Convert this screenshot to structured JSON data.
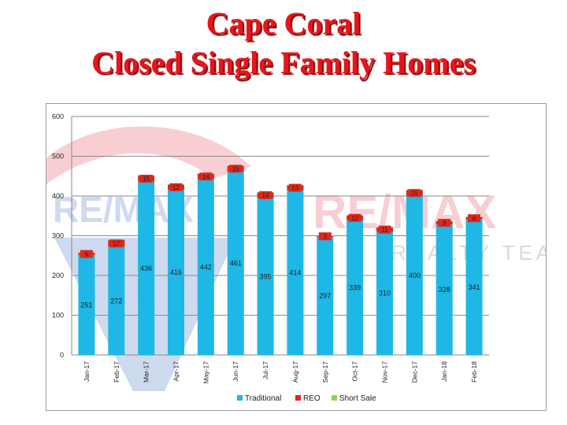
{
  "header": {
    "title_line1": "Cape Coral",
    "title_line2": "Closed Single Family Homes"
  },
  "watermark": {
    "brand_left": "RE/MAX",
    "brand_right": "RE/MAX",
    "tagline": "REALTY TEAM",
    "colors": {
      "red": "#e4263a",
      "blue": "#1f5ab8"
    }
  },
  "chart_data": {
    "type": "bar",
    "stacked": true,
    "categories": [
      "Jan-17",
      "Feb-17",
      "Mar-17",
      "Apr-17",
      "May-17",
      "Jun-17",
      "Jul-17",
      "Aug-17",
      "Sep-17",
      "Oct-17",
      "Nov-17",
      "Dec-17",
      "Jan-18",
      "Feb-18"
    ],
    "series": [
      {
        "name": "Traditional",
        "color": "#1db8e6",
        "values": [
          251,
          272,
          436,
          416,
          442,
          461,
          395,
          414,
          297,
          339,
          310,
          400,
          328,
          341
        ]
      },
      {
        "name": "REO",
        "color": "#e0261c",
        "values": [
          6,
          17,
          15,
          12,
          14,
          15,
          14,
          13,
          3,
          12,
          11,
          15,
          9,
          6
        ]
      },
      {
        "name": "Short Sale",
        "color": "#8bd45a",
        "values": [
          2,
          2,
          2,
          2,
          1,
          1,
          1,
          1,
          1,
          1,
          1,
          1,
          1,
          1
        ]
      }
    ],
    "ylim": [
      0,
      600
    ],
    "yticks": [
      0,
      100,
      200,
      300,
      400,
      500,
      600
    ],
    "grid": true,
    "legend_position": "bottom"
  }
}
